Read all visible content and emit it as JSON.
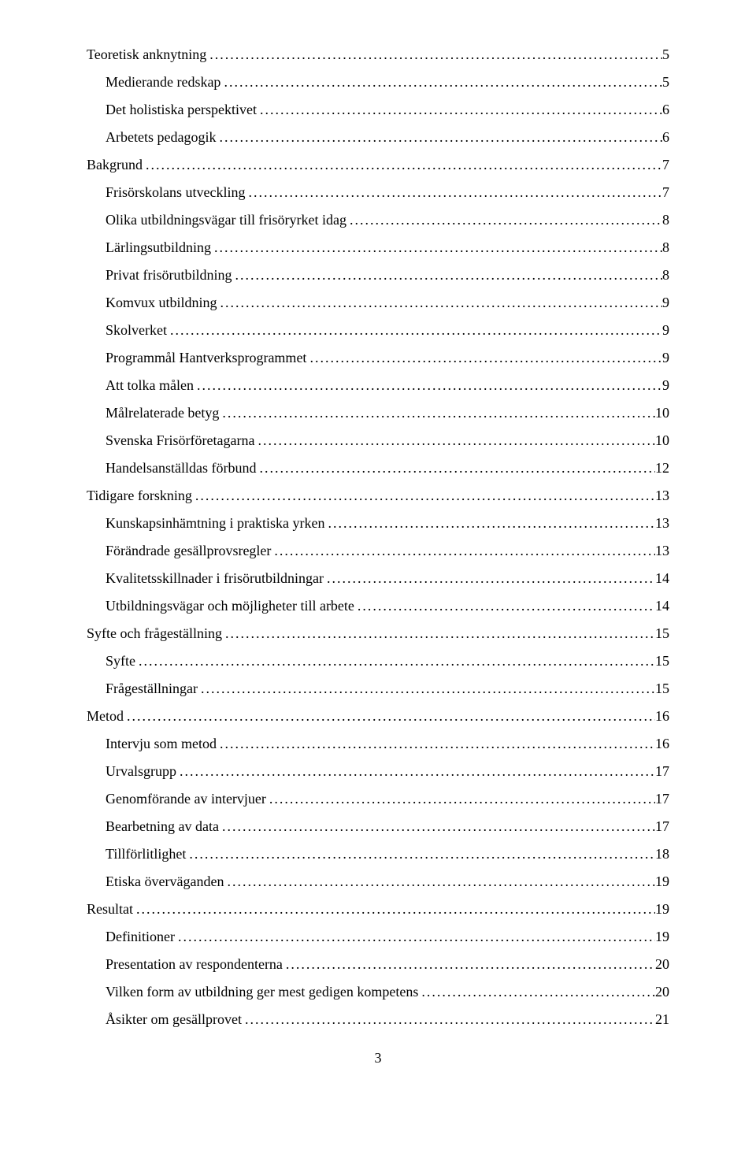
{
  "toc": [
    {
      "title": "Teoretisk anknytning",
      "page": "5",
      "level": 0
    },
    {
      "title": "Medierande redskap",
      "page": "5",
      "level": 1
    },
    {
      "title": "Det holistiska perspektivet",
      "page": "6",
      "level": 1
    },
    {
      "title": "Arbetets pedagogik",
      "page": "6",
      "level": 1
    },
    {
      "title": "Bakgrund",
      "page": "7",
      "level": 0
    },
    {
      "title": "Frisörskolans utveckling",
      "page": "7",
      "level": 1
    },
    {
      "title": "Olika utbildningsvägar till frisöryrket idag",
      "page": "8",
      "level": 1
    },
    {
      "title": "Lärlingsutbildning",
      "page": "8",
      "level": 1
    },
    {
      "title": "Privat frisörutbildning",
      "page": "8",
      "level": 1
    },
    {
      "title": "Komvux utbildning",
      "page": "9",
      "level": 1
    },
    {
      "title": "Skolverket",
      "page": "9",
      "level": 1
    },
    {
      "title": "Programmål Hantverksprogrammet",
      "page": "9",
      "level": 1
    },
    {
      "title": "Att tolka målen",
      "page": "9",
      "level": 1
    },
    {
      "title": "Målrelaterade betyg",
      "page": "10",
      "level": 1
    },
    {
      "title": "Svenska Frisörföretagarna",
      "page": "10",
      "level": 1
    },
    {
      "title": "Handelsanställdas förbund",
      "page": "12",
      "level": 1
    },
    {
      "title": "Tidigare forskning",
      "page": "13",
      "level": 0
    },
    {
      "title": "Kunskapsinhämtning i praktiska yrken",
      "page": "13",
      "level": 1
    },
    {
      "title": "Förändrade gesällprovsregler",
      "page": "13",
      "level": 1
    },
    {
      "title": "Kvalitetsskillnader i frisörutbildningar",
      "page": "14",
      "level": 1
    },
    {
      "title": "Utbildningsvägar och möjligheter till arbete",
      "page": "14",
      "level": 1
    },
    {
      "title": "Syfte och frågeställning",
      "page": "15",
      "level": 0
    },
    {
      "title": "Syfte",
      "page": "15",
      "level": 1
    },
    {
      "title": "Frågeställningar",
      "page": "15",
      "level": 1
    },
    {
      "title": "Metod",
      "page": "16",
      "level": 0
    },
    {
      "title": "Intervju som metod",
      "page": "16",
      "level": 1
    },
    {
      "title": "Urvalsgrupp",
      "page": "17",
      "level": 1
    },
    {
      "title": "Genomförande av intervjuer",
      "page": "17",
      "level": 1
    },
    {
      "title": "Bearbetning av data",
      "page": "17",
      "level": 1
    },
    {
      "title": "Tillförlitlighet",
      "page": "18",
      "level": 1
    },
    {
      "title": "Etiska överväganden",
      "page": "19",
      "level": 1
    },
    {
      "title": "Resultat",
      "page": "19",
      "level": 0
    },
    {
      "title": "Definitioner",
      "page": "19",
      "level": 1
    },
    {
      "title": "Presentation av respondenterna",
      "page": "20",
      "level": 1
    },
    {
      "title": "Vilken form av utbildning ger mest gedigen kompetens",
      "page": "20",
      "level": 1
    },
    {
      "title": "Åsikter om gesällprovet",
      "page": "21",
      "level": 1
    }
  ],
  "page_number": "3"
}
